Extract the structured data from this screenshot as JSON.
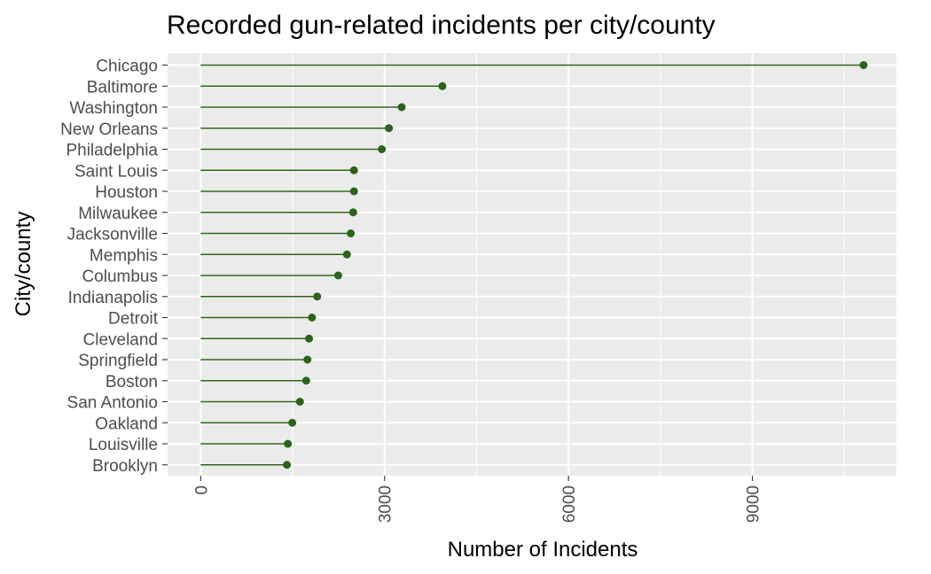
{
  "chart_data": {
    "type": "lollipop",
    "title": "Recorded gun-related incidents per city/county",
    "xlabel": "Number of Incidents",
    "ylabel": "City/county",
    "xlim": [
      -540,
      11350
    ],
    "x_ticks": [
      0,
      3000,
      6000,
      9000
    ],
    "x_tick_labels": [
      "0",
      "3000",
      "6000",
      "9000"
    ],
    "grid": true,
    "point_color": "#2a6418",
    "panel_color": "#ebebeb",
    "categories": [
      "Chicago",
      "Baltimore",
      "Washington",
      "New Orleans",
      "Philadelphia",
      "Saint Louis",
      "Houston",
      "Milwaukee",
      "Jacksonville",
      "Memphis",
      "Columbus",
      "Indianapolis",
      "Detroit",
      "Cleveland",
      "Springfield",
      "Boston",
      "San Antonio",
      "Oakland",
      "Louisville",
      "Brooklyn"
    ],
    "values": [
      10814,
      3943,
      3279,
      3071,
      2955,
      2501,
      2501,
      2488,
      2448,
      2386,
      2243,
      1901,
      1816,
      1768,
      1742,
      1721,
      1619,
      1494,
      1422,
      1407
    ]
  }
}
